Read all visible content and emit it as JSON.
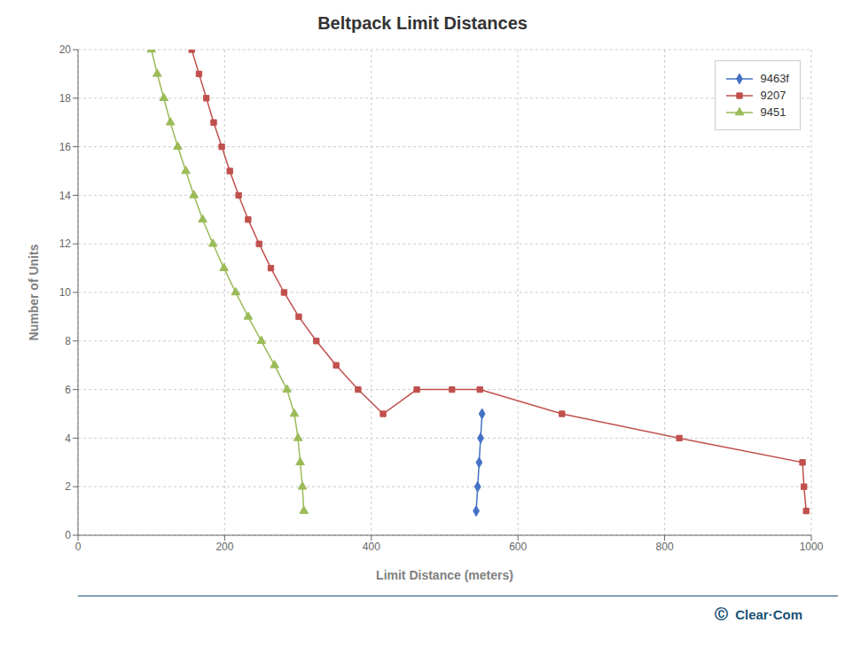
{
  "chart_data": {
    "type": "line",
    "title": "Beltpack Limit Distances",
    "x_label": "Limit Distance (meters)",
    "y_label": "Number of Units",
    "xlim": [
      0,
      1000
    ],
    "xticks": [
      0,
      200,
      400,
      600,
      800,
      1000
    ],
    "ylim": [
      0,
      20
    ],
    "yticks": [
      0,
      2,
      4,
      6,
      8,
      10,
      12,
      14,
      16,
      18,
      20
    ],
    "grid": true,
    "legend": "upper right",
    "annotations": [
      "Ⓒ",
      "Clear·Com"
    ],
    "series": [
      {
        "name": "9463f",
        "color": "#4472C4",
        "marker": "diamond",
        "x": [
          543,
          545,
          547,
          549,
          551
        ],
        "values": [
          1,
          2,
          3,
          4,
          5
        ]
      },
      {
        "name": "9207",
        "color": "#C0504D",
        "marker": "square",
        "x": [
          155,
          165,
          175,
          185,
          196,
          207,
          219,
          232,
          247,
          263,
          281,
          301,
          325,
          352,
          382,
          416,
          462,
          510,
          548,
          660,
          820,
          988,
          990,
          993
        ],
        "values": [
          20,
          19,
          18,
          17,
          16,
          15,
          14,
          13,
          12,
          11,
          10,
          9,
          8,
          7,
          6,
          5,
          6,
          6,
          6,
          5,
          4,
          3,
          2,
          1
        ]
      },
      {
        "name": "9451",
        "color": "#9BBB59",
        "marker": "triangle",
        "x": [
          100,
          108,
          117,
          126,
          136,
          147,
          158,
          170,
          184,
          199,
          215,
          232,
          250,
          268,
          285,
          295,
          300,
          303,
          306,
          308
        ],
        "values": [
          20,
          19,
          18,
          17,
          16,
          15,
          14,
          13,
          12,
          11,
          10,
          9,
          8,
          7,
          6,
          5,
          4,
          3,
          2,
          1
        ]
      }
    ]
  }
}
